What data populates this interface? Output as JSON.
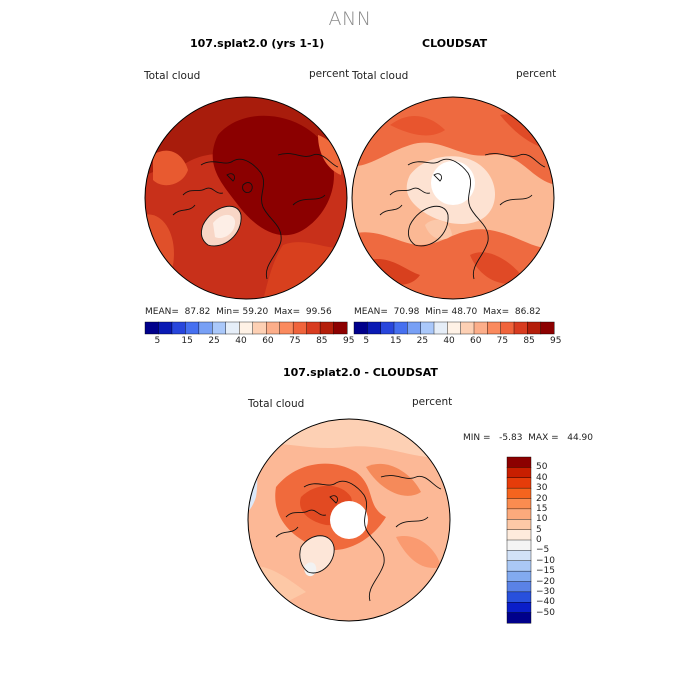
{
  "page_title": "ANN",
  "panels": [
    {
      "title": "107.splat2.0 (yrs 1-1)",
      "variable_label": "Total cloud",
      "units_label": "percent",
      "stats": {
        "mean_label": "MEAN=",
        "mean": "87.82",
        "min_label": "Min=",
        "min": "59.20",
        "max_label": "Max=",
        "max": "99.56"
      }
    },
    {
      "title": "CLOUDSAT",
      "variable_label": "Total cloud",
      "units_label": "percent",
      "stats": {
        "mean_label": "MEAN=",
        "mean": "70.98",
        "min_label": "Min=",
        "min": "48.70",
        "max_label": "Max=",
        "max": "86.82"
      }
    },
    {
      "title": "107.splat2.0 - CLOUDSAT",
      "variable_label": "Total cloud",
      "units_label": "percent",
      "stats_text": "MIN =   -5.83  MAX =   44.90"
    }
  ],
  "colorbar_abs": {
    "colors": [
      "#00008b",
      "#0a1ab4",
      "#2846dc",
      "#4670f0",
      "#78a0f5",
      "#aac8fa",
      "#e6eef8",
      "#fff2e6",
      "#fdd0b4",
      "#fcae8a",
      "#fa8a5e",
      "#f0643c",
      "#d83c20",
      "#b41e0a",
      "#8c0000"
    ],
    "tick_labels": [
      "5",
      "15",
      "25",
      "40",
      "60",
      "75",
      "85",
      "95"
    ]
  },
  "colorbar_diff": {
    "levels": [
      "50",
      "40",
      "30",
      "20",
      "15",
      "10",
      "5",
      "0",
      "−5",
      "−10",
      "−15",
      "−20",
      "−30",
      "−40",
      "−50"
    ],
    "colors": [
      "#8c0000",
      "#c81e00",
      "#e63c0a",
      "#f5641e",
      "#fa8c50",
      "#fcaa7c",
      "#fdc8a6",
      "#feebdc",
      "#f4f4f4",
      "#d2e2f8",
      "#aac8f5",
      "#82aaf0",
      "#5a82e6",
      "#2850dc",
      "#0a1ec8",
      "#00008b"
    ]
  },
  "chart_data": [
    {
      "type": "heatmap",
      "title": "107.splat2.0 (yrs 1-1)",
      "projection": "north polar stereographic",
      "variable": "Total cloud",
      "units": "percent",
      "mean": 87.82,
      "min": 59.2,
      "max": 99.56,
      "contour_levels": [
        5,
        15,
        25,
        40,
        60,
        75,
        85,
        95
      ]
    },
    {
      "type": "heatmap",
      "title": "CLOUDSAT",
      "projection": "north polar stereographic",
      "variable": "Total cloud",
      "units": "percent",
      "mean": 70.98,
      "min": 48.7,
      "max": 86.82,
      "contour_levels": [
        5,
        15,
        25,
        40,
        60,
        75,
        85,
        95
      ]
    },
    {
      "type": "heatmap",
      "title": "107.splat2.0 - CLOUDSAT",
      "projection": "north polar stereographic",
      "variable": "Total cloud",
      "units": "percent",
      "min": -5.83,
      "max": 44.9,
      "contour_levels": [
        -50,
        -40,
        -30,
        -20,
        -15,
        -10,
        -5,
        0,
        5,
        10,
        15,
        20,
        30,
        40,
        50
      ]
    }
  ]
}
